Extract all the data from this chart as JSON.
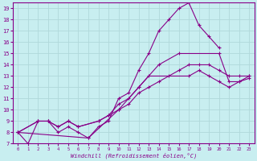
{
  "xlabel": "Windchill (Refroidissement éolien,°C)",
  "background_color": "#c8eef0",
  "grid_color": "#b0d8da",
  "line_color": "#880088",
  "xlim": [
    -0.5,
    23.5
  ],
  "ylim": [
    7,
    19.5
  ],
  "yticks": [
    7,
    8,
    9,
    10,
    11,
    12,
    13,
    14,
    15,
    16,
    17,
    18,
    19
  ],
  "xticks": [
    0,
    1,
    2,
    3,
    4,
    5,
    6,
    7,
    8,
    9,
    10,
    11,
    12,
    13,
    14,
    15,
    16,
    17,
    18,
    19,
    20,
    21,
    22,
    23
  ],
  "series": [
    {
      "x": [
        0,
        1,
        2,
        3,
        4,
        5,
        6,
        7,
        8,
        9,
        10,
        11,
        12,
        13,
        14,
        15,
        16,
        17,
        18,
        19,
        20
      ],
      "y": [
        8,
        7,
        9,
        9,
        8,
        8.5,
        8,
        7.5,
        8.5,
        9,
        11,
        11.5,
        13.5,
        15,
        17,
        18,
        19,
        19.5,
        17.5,
        16.5,
        15.5
      ]
    },
    {
      "x": [
        0,
        7,
        10,
        12,
        14,
        16,
        20,
        21,
        22,
        23
      ],
      "y": [
        8,
        7.5,
        10,
        12,
        14,
        15,
        15,
        12.5,
        12.5,
        13
      ]
    },
    {
      "x": [
        0,
        2,
        3,
        4,
        5,
        6,
        8,
        9,
        10,
        11,
        12,
        13,
        17,
        18,
        19,
        20,
        21,
        22,
        23
      ],
      "y": [
        8,
        9,
        9,
        8.5,
        9,
        8.5,
        9,
        9.5,
        10.5,
        11,
        12,
        13,
        13,
        13.5,
        13,
        12.5,
        12,
        12.5,
        12.8
      ]
    },
    {
      "x": [
        0,
        2,
        3,
        4,
        5,
        6,
        8,
        9,
        10,
        11,
        12,
        13,
        14,
        15,
        16,
        17,
        18,
        19,
        20,
        21,
        22,
        23
      ],
      "y": [
        8,
        9,
        9,
        8.5,
        9,
        8.5,
        9,
        9.5,
        10,
        10.5,
        11.5,
        12,
        12.5,
        13,
        13.5,
        14,
        14,
        14,
        13.5,
        13,
        13,
        13
      ]
    }
  ]
}
